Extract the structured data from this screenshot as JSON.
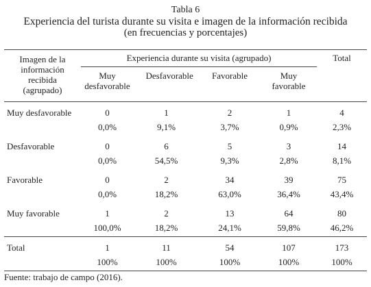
{
  "header": {
    "label": "Tabla 6",
    "title": "Experiencia del turista durante su visita e imagen de la información recibida",
    "subtitle": "(en frecuencias y porcentajes)"
  },
  "table": {
    "row_header": "Imagen de la información recibida (agrupado)",
    "group_header": "Experiencia durante su visita (agrupado)",
    "total_header": "Total",
    "columns": [
      "Muy desfavorable",
      "Desfavorable",
      "Favorable",
      "Muy favorable"
    ],
    "rows": [
      {
        "label": "Muy desfavorable",
        "counts": [
          "0",
          "1",
          "2",
          "1",
          "4"
        ],
        "percents": [
          "0,0%",
          "9,1%",
          "3,7%",
          "0,9%",
          "2,3%"
        ]
      },
      {
        "label": "Desfavorable",
        "counts": [
          "0",
          "6",
          "5",
          "3",
          "14"
        ],
        "percents": [
          "0,0%",
          "54,5%",
          "9,3%",
          "2,8%",
          "8,1%"
        ]
      },
      {
        "label": "Favorable",
        "counts": [
          "0",
          "2",
          "34",
          "39",
          "75"
        ],
        "percents": [
          "0,0%",
          "18,2%",
          "63,0%",
          "36,4%",
          "43,4%"
        ]
      },
      {
        "label": "Muy favorable",
        "counts": [
          "1",
          "2",
          "13",
          "64",
          "80"
        ],
        "percents": [
          "100,0%",
          "18,2%",
          "24,1%",
          "59,8%",
          "46,2%"
        ]
      },
      {
        "label": "Total",
        "counts": [
          "1",
          "11",
          "54",
          "107",
          "173"
        ],
        "percents": [
          "100%",
          "100%",
          "100%",
          "100%",
          "100%"
        ]
      }
    ]
  },
  "footer": "Fuente: trabajo de campo (2016)."
}
